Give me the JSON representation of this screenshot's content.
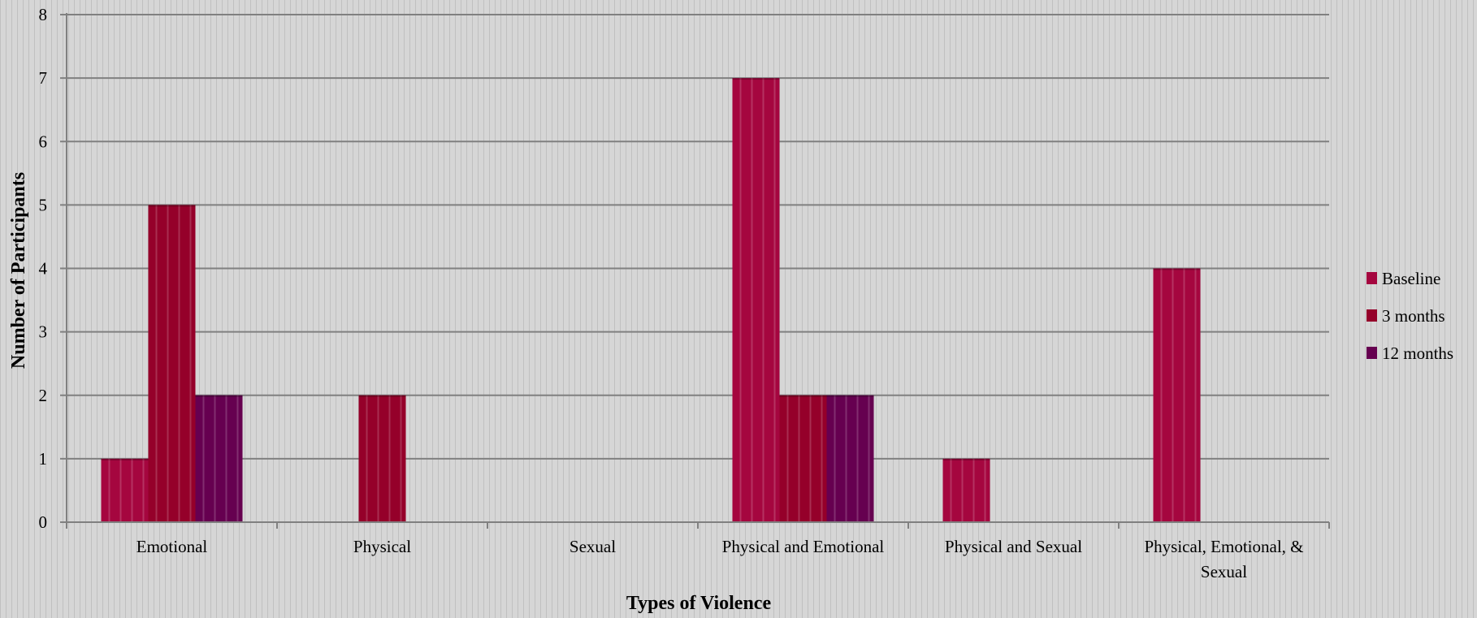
{
  "chart_data": {
    "type": "bar",
    "categories": [
      [
        "Emotional"
      ],
      [
        "Physical"
      ],
      [
        "Sexual"
      ],
      [
        "Physical and Emotional"
      ],
      [
        "Physical and Sexual"
      ],
      [
        "Physical, Emotional, &",
        "Sexual"
      ]
    ],
    "series": [
      {
        "name": "Baseline",
        "color": "#a5063f",
        "values": [
          1,
          0,
          0,
          7,
          1,
          4
        ]
      },
      {
        "name": "3 months",
        "color": "#95002a",
        "values": [
          5,
          2,
          0,
          2,
          0,
          0
        ]
      },
      {
        "name": "12 months",
        "color": "#660050",
        "values": [
          2,
          0,
          0,
          2,
          0,
          0
        ]
      }
    ],
    "xlabel": "Types of Violence",
    "ylabel": "Number of Participants",
    "ylim": [
      0,
      8
    ],
    "yticks": [
      "0",
      "1",
      "2",
      "3",
      "4",
      "5",
      "6",
      "7",
      "8"
    ],
    "grid": true,
    "legend_position": "right"
  }
}
